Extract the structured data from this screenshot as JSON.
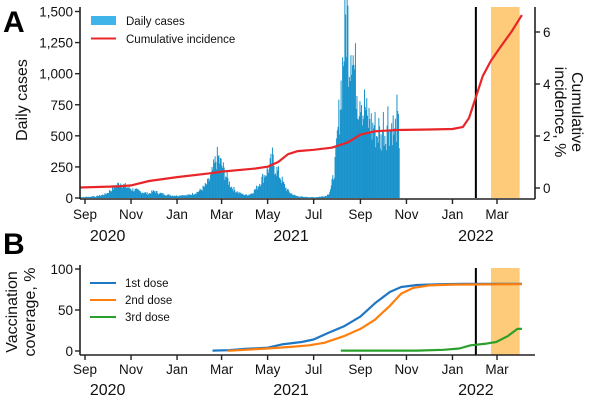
{
  "chart_data": [
    {
      "panel": "A",
      "type": "bar",
      "title": "",
      "xlabel": "",
      "ylabel": "Daily cases",
      "y2label": "Cumulative incidence, %",
      "ylim": [
        0,
        1500
      ],
      "y2lim": [
        0,
        6.8
      ],
      "yticks": [
        "0",
        "250",
        "500",
        "750",
        "1,000",
        "1,250",
        "1,500"
      ],
      "yticks_values": [
        0,
        250,
        500,
        750,
        1000,
        1250,
        1500
      ],
      "y2ticks": [
        "0",
        "2",
        "4",
        "6"
      ],
      "y2ticks_values": [
        0,
        2,
        4,
        6
      ],
      "x_tick_labels": [
        "Sep",
        "Nov",
        "Jan",
        "Mar",
        "May",
        "Jul",
        "Sep",
        "Nov",
        "Jan",
        "Mar"
      ],
      "x_tick_dates": [
        "2020-09-01",
        "2020-11-01",
        "2021-01-01",
        "2021-03-01",
        "2021-05-01",
        "2021-07-01",
        "2021-09-01",
        "2021-11-01",
        "2022-01-01",
        "2022-03-01"
      ],
      "year_labels": [
        {
          "label": "2020",
          "date": "2020-10-01"
        },
        {
          "label": "2021",
          "date": "2021-06-01"
        },
        {
          "label": "2022",
          "date": "2022-02-01"
        }
      ],
      "legend": [
        {
          "name": "Daily cases",
          "type": "bar",
          "color": "#3fb4e8"
        },
        {
          "name": "Cumulative incidence",
          "type": "line",
          "color": "#e8262a"
        }
      ],
      "legend_position": "top-left",
      "series": [
        {
          "name": "Daily cases",
          "type": "bar",
          "color": "#1a93cc",
          "start_date": "2020-08-25",
          "step_days": 3,
          "values": [
            5,
            8,
            6,
            10,
            8,
            12,
            15,
            10,
            18,
            20,
            25,
            30,
            40,
            55,
            70,
            85,
            100,
            110,
            120,
            105,
            95,
            85,
            80,
            70,
            65,
            60,
            55,
            50,
            45,
            40,
            35,
            40,
            50,
            55,
            45,
            40,
            35,
            30,
            28,
            25,
            22,
            20,
            20,
            18,
            20,
            25,
            22,
            20,
            25,
            30,
            35,
            40,
            50,
            60,
            75,
            90,
            110,
            140,
            180,
            240,
            300,
            330,
            280,
            250,
            200,
            160,
            120,
            90,
            70,
            55,
            45,
            35,
            30,
            25,
            25,
            30,
            40,
            60,
            80,
            110,
            140,
            170,
            200,
            230,
            260,
            320,
            250,
            220,
            190,
            150,
            110,
            80,
            55,
            40,
            28,
            20,
            15,
            12,
            10,
            8,
            8,
            7,
            6,
            6,
            6,
            8,
            10,
            12,
            15,
            20,
            40,
            90,
            180,
            320,
            550,
            800,
            1050,
            1350,
            1490,
            1150,
            1350,
            1050,
            950,
            800,
            900,
            700,
            750,
            600,
            650,
            550,
            600,
            500,
            550,
            450,
            600,
            500,
            650,
            550,
            600,
            500,
            650,
            480
          ]
        },
        {
          "name": "Cumulative incidence",
          "type": "line",
          "axis": "right",
          "color": "#e8262a",
          "points": [
            {
              "date": "2020-08-25",
              "value": 0.02
            },
            {
              "date": "2020-10-15",
              "value": 0.06
            },
            {
              "date": "2020-11-01",
              "value": 0.1
            },
            {
              "date": "2020-11-25",
              "value": 0.27
            },
            {
              "date": "2021-01-01",
              "value": 0.42
            },
            {
              "date": "2021-02-15",
              "value": 0.57
            },
            {
              "date": "2021-03-01",
              "value": 0.63
            },
            {
              "date": "2021-04-15",
              "value": 0.75
            },
            {
              "date": "2021-05-01",
              "value": 0.82
            },
            {
              "date": "2021-05-15",
              "value": 1.0
            },
            {
              "date": "2021-05-28",
              "value": 1.3
            },
            {
              "date": "2021-06-10",
              "value": 1.42
            },
            {
              "date": "2021-07-01",
              "value": 1.47
            },
            {
              "date": "2021-07-25",
              "value": 1.55
            },
            {
              "date": "2021-08-15",
              "value": 1.75
            },
            {
              "date": "2021-09-01",
              "value": 2.05
            },
            {
              "date": "2021-09-20",
              "value": 2.18
            },
            {
              "date": "2021-10-20",
              "value": 2.23
            },
            {
              "date": "2021-12-01",
              "value": 2.25
            },
            {
              "date": "2022-01-01",
              "value": 2.27
            },
            {
              "date": "2022-01-15",
              "value": 2.35
            },
            {
              "date": "2022-01-23",
              "value": 2.7
            },
            {
              "date": "2022-02-01",
              "value": 3.5
            },
            {
              "date": "2022-02-10",
              "value": 4.3
            },
            {
              "date": "2022-02-21",
              "value": 4.9
            },
            {
              "date": "2022-03-05",
              "value": 5.4
            },
            {
              "date": "2022-03-20",
              "value": 6.0
            },
            {
              "date": "2022-04-03",
              "value": 6.65
            }
          ]
        }
      ],
      "annotations": [
        {
          "type": "vertical-line",
          "date": "2022-02-01",
          "color": "#000000"
        },
        {
          "type": "shaded-band",
          "start": "2022-02-21",
          "end": "2022-03-31",
          "color": "#fdb94d"
        }
      ]
    },
    {
      "panel": "B",
      "type": "line",
      "title": "",
      "xlabel": "",
      "ylabel": "Vaccination coverage, %",
      "ylim": [
        0,
        100
      ],
      "yticks": [
        "0",
        "50",
        "100"
      ],
      "yticks_values": [
        0,
        50,
        100
      ],
      "x_tick_labels": [
        "Sep",
        "Nov",
        "Jan",
        "Mar",
        "May",
        "Jul",
        "Sep",
        "Nov",
        "Jan",
        "Mar"
      ],
      "x_tick_dates": [
        "2020-09-01",
        "2020-11-01",
        "2021-01-01",
        "2021-03-01",
        "2021-05-01",
        "2021-07-01",
        "2021-09-01",
        "2021-11-01",
        "2022-01-01",
        "2022-03-01"
      ],
      "year_labels": [
        {
          "label": "2020",
          "date": "2020-10-01"
        },
        {
          "label": "2021",
          "date": "2021-06-01"
        },
        {
          "label": "2022",
          "date": "2022-02-01"
        }
      ],
      "legend_position": "top-left",
      "series": [
        {
          "name": "1st dose",
          "color": "#1f77c4",
          "points": [
            {
              "date": "2021-02-17",
              "value": 0.5
            },
            {
              "date": "2021-03-10",
              "value": 1.0
            },
            {
              "date": "2021-04-01",
              "value": 2.5
            },
            {
              "date": "2021-05-01",
              "value": 4
            },
            {
              "date": "2021-05-20",
              "value": 8
            },
            {
              "date": "2021-06-15",
              "value": 11
            },
            {
              "date": "2021-07-01",
              "value": 14
            },
            {
              "date": "2021-07-20",
              "value": 22
            },
            {
              "date": "2021-08-10",
              "value": 30
            },
            {
              "date": "2021-09-01",
              "value": 42
            },
            {
              "date": "2021-09-20",
              "value": 58
            },
            {
              "date": "2021-10-10",
              "value": 72
            },
            {
              "date": "2021-10-25",
              "value": 78
            },
            {
              "date": "2021-11-15",
              "value": 80.5
            },
            {
              "date": "2021-12-15",
              "value": 81.5
            },
            {
              "date": "2022-01-15",
              "value": 82
            },
            {
              "date": "2022-04-03",
              "value": 82
            }
          ]
        },
        {
          "name": "2nd dose",
          "color": "#ff7f0e",
          "points": [
            {
              "date": "2021-03-09",
              "value": 0.3
            },
            {
              "date": "2021-04-01",
              "value": 1.5
            },
            {
              "date": "2021-05-01",
              "value": 3
            },
            {
              "date": "2021-06-01",
              "value": 5
            },
            {
              "date": "2021-06-25",
              "value": 7
            },
            {
              "date": "2021-07-15",
              "value": 10
            },
            {
              "date": "2021-08-10",
              "value": 18
            },
            {
              "date": "2021-09-01",
              "value": 27
            },
            {
              "date": "2021-09-20",
              "value": 38
            },
            {
              "date": "2021-10-10",
              "value": 55
            },
            {
              "date": "2021-10-25",
              "value": 70
            },
            {
              "date": "2021-11-10",
              "value": 77
            },
            {
              "date": "2021-12-01",
              "value": 80
            },
            {
              "date": "2022-01-01",
              "value": 81
            },
            {
              "date": "2022-04-03",
              "value": 81.5
            }
          ]
        },
        {
          "name": "3rd dose",
          "color": "#2ca02c",
          "points": [
            {
              "date": "2021-08-06",
              "value": 0.5
            },
            {
              "date": "2021-11-15",
              "value": 0.5
            },
            {
              "date": "2021-12-20",
              "value": 1.5
            },
            {
              "date": "2022-01-10",
              "value": 3
            },
            {
              "date": "2022-01-25",
              "value": 7
            },
            {
              "date": "2022-02-15",
              "value": 9
            },
            {
              "date": "2022-02-28",
              "value": 11
            },
            {
              "date": "2022-03-15",
              "value": 18
            },
            {
              "date": "2022-03-28",
              "value": 27
            },
            {
              "date": "2022-04-03",
              "value": 27
            }
          ]
        }
      ],
      "annotations": [
        {
          "type": "vertical-line",
          "date": "2022-02-01",
          "color": "#000000"
        },
        {
          "type": "shaded-band",
          "start": "2022-02-21",
          "end": "2022-03-31",
          "color": "#fdb94d"
        }
      ]
    }
  ],
  "panels": {
    "a": {
      "letter": "A"
    },
    "b": {
      "letter": "B"
    }
  }
}
